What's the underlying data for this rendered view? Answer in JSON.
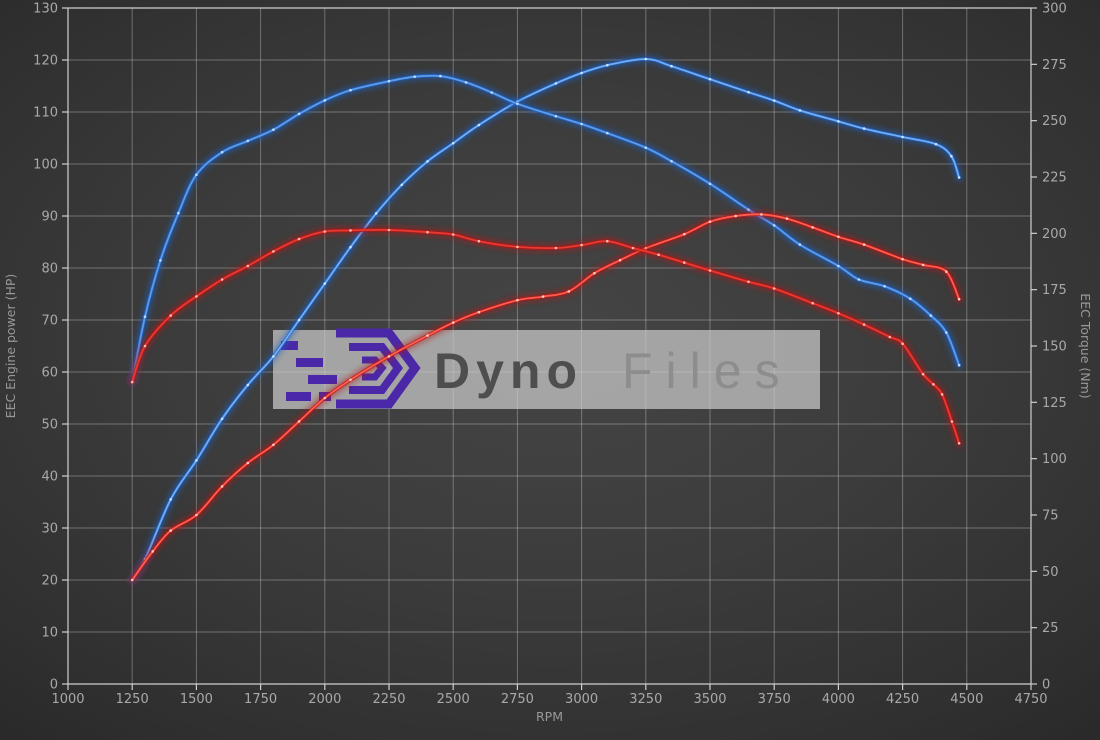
{
  "watermark": {
    "brand_primary": "Dyno",
    "brand_secondary": "Files",
    "logo_color": "#4a28a7",
    "box_color": "#cfcfcf",
    "primary_text_color": "#4e4e4e",
    "secondary_text_color": "#8d8d8d"
  },
  "chart_data": {
    "type": "line",
    "xlabel": "RPM",
    "ylabel_left": "EEC Engine power (HP)",
    "ylabel_right": "EEC Torque (Nm)",
    "x_range": [
      1000,
      4750
    ],
    "x_ticks": [
      1000,
      1250,
      1500,
      1750,
      2000,
      2250,
      2500,
      2750,
      3000,
      3250,
      3500,
      3750,
      4000,
      4250,
      4500,
      4750
    ],
    "y_left_range": [
      0,
      130
    ],
    "y_left_ticks": [
      0,
      10,
      20,
      30,
      40,
      50,
      60,
      70,
      80,
      90,
      100,
      110,
      120,
      130
    ],
    "y_right_range": [
      0,
      300
    ],
    "y_right_ticks": [
      0,
      25,
      50,
      75,
      100,
      125,
      150,
      175,
      200,
      225,
      250,
      275,
      300
    ],
    "grid": true,
    "legend": "none",
    "style": {
      "grid_color": "rgba(210,210,210,0.38)",
      "spine_color": "#cfcfcf",
      "tick_label_color": "#a9a9a9",
      "axis_title_color": "#989898",
      "blue": "#3c7fd9",
      "red": "#d42a20"
    },
    "series": [
      {
        "id": "engine-power-blue",
        "axis": "left",
        "peak": "120 HP @ 3250 rpm",
        "color": {
          "glow": "#1e62c8",
          "core": "#74aef2",
          "dot": "#d6e9ff"
        },
        "points": [
          [
            1250,
            20
          ],
          [
            1300,
            24
          ],
          [
            1400,
            35.5
          ],
          [
            1500,
            43
          ],
          [
            1600,
            51
          ],
          [
            1700,
            57.5
          ],
          [
            1800,
            63
          ],
          [
            1900,
            70
          ],
          [
            2000,
            77
          ],
          [
            2100,
            84
          ],
          [
            2200,
            90.5
          ],
          [
            2300,
            96
          ],
          [
            2400,
            100.5
          ],
          [
            2500,
            104
          ],
          [
            2600,
            107.5
          ],
          [
            2750,
            112
          ],
          [
            2900,
            115.5
          ],
          [
            3000,
            117.5
          ],
          [
            3100,
            119
          ],
          [
            3250,
            120.2
          ],
          [
            3350,
            118.8
          ],
          [
            3500,
            116.3
          ],
          [
            3650,
            113.8
          ],
          [
            3750,
            112.2
          ],
          [
            3850,
            110.3
          ],
          [
            4000,
            108.2
          ],
          [
            4100,
            106.8
          ],
          [
            4250,
            105.2
          ],
          [
            4380,
            103.8
          ],
          [
            4440,
            101.5
          ],
          [
            4470,
            97.4
          ]
        ]
      },
      {
        "id": "engine-torque-blue",
        "axis": "right",
        "peak": "270 Nm @ 2450 rpm",
        "color": {
          "glow": "#1e62c8",
          "core": "#5e9ce8",
          "dot": "#c9e2ff"
        },
        "points": [
          [
            1250,
            134
          ],
          [
            1300,
            163
          ],
          [
            1360,
            188
          ],
          [
            1430,
            209
          ],
          [
            1500,
            226
          ],
          [
            1600,
            236
          ],
          [
            1700,
            241
          ],
          [
            1800,
            246
          ],
          [
            1900,
            253
          ],
          [
            2000,
            259
          ],
          [
            2100,
            263.5
          ],
          [
            2250,
            267.5
          ],
          [
            2350,
            269.5
          ],
          [
            2450,
            269.8
          ],
          [
            2550,
            267
          ],
          [
            2650,
            262.5
          ],
          [
            2750,
            257.5
          ],
          [
            2900,
            252
          ],
          [
            3000,
            248.5
          ],
          [
            3100,
            244.5
          ],
          [
            3250,
            238
          ],
          [
            3350,
            232
          ],
          [
            3500,
            222
          ],
          [
            3650,
            210.5
          ],
          [
            3750,
            203.5
          ],
          [
            3850,
            195
          ],
          [
            4000,
            185.5
          ],
          [
            4080,
            179.5
          ],
          [
            4180,
            176.5
          ],
          [
            4280,
            171
          ],
          [
            4360,
            163.5
          ],
          [
            4420,
            156
          ],
          [
            4470,
            141.5
          ]
        ]
      },
      {
        "id": "engine-power-red",
        "axis": "left",
        "peak": "90 HP @ 3700 rpm",
        "color": {
          "glow": "#b81414",
          "core": "#ff5d50",
          "dot": "#ffd8cf"
        },
        "points": [
          [
            1250,
            20
          ],
          [
            1330,
            25.5
          ],
          [
            1400,
            29.5
          ],
          [
            1500,
            32.5
          ],
          [
            1600,
            38
          ],
          [
            1700,
            42.5
          ],
          [
            1800,
            46
          ],
          [
            1900,
            50.5
          ],
          [
            2000,
            55
          ],
          [
            2100,
            58.5
          ],
          [
            2250,
            63
          ],
          [
            2400,
            67
          ],
          [
            2500,
            69.5
          ],
          [
            2600,
            71.5
          ],
          [
            2750,
            73.8
          ],
          [
            2850,
            74.5
          ],
          [
            2950,
            75.5
          ],
          [
            3050,
            79
          ],
          [
            3150,
            81.5
          ],
          [
            3250,
            83.8
          ],
          [
            3400,
            86.5
          ],
          [
            3500,
            88.9
          ],
          [
            3600,
            90
          ],
          [
            3700,
            90.3
          ],
          [
            3800,
            89.5
          ],
          [
            3900,
            87.8
          ],
          [
            4000,
            86
          ],
          [
            4100,
            84.5
          ],
          [
            4250,
            81.7
          ],
          [
            4330,
            80.6
          ],
          [
            4420,
            79.3
          ],
          [
            4470,
            74
          ]
        ]
      },
      {
        "id": "engine-torque-red",
        "axis": "right",
        "peak": "201 Nm @ 2250 rpm",
        "color": {
          "glow": "#b81414",
          "core": "#e63b32",
          "dot": "#ffc9c2"
        },
        "points": [
          [
            1250,
            134
          ],
          [
            1300,
            150
          ],
          [
            1400,
            163.5
          ],
          [
            1500,
            172
          ],
          [
            1600,
            179.5
          ],
          [
            1700,
            185.5
          ],
          [
            1800,
            192
          ],
          [
            1900,
            197.5
          ],
          [
            2000,
            200.8
          ],
          [
            2100,
            201.3
          ],
          [
            2250,
            201.5
          ],
          [
            2400,
            200.5
          ],
          [
            2500,
            199.5
          ],
          [
            2600,
            196.5
          ],
          [
            2750,
            194
          ],
          [
            2900,
            193.5
          ],
          [
            3000,
            194.8
          ],
          [
            3100,
            196.5
          ],
          [
            3200,
            193.5
          ],
          [
            3300,
            190.5
          ],
          [
            3400,
            187
          ],
          [
            3500,
            183.5
          ],
          [
            3650,
            178.5
          ],
          [
            3750,
            175.5
          ],
          [
            3900,
            169
          ],
          [
            4000,
            164.5
          ],
          [
            4100,
            159.5
          ],
          [
            4200,
            154
          ],
          [
            4250,
            151
          ],
          [
            4330,
            137.5
          ],
          [
            4370,
            133
          ],
          [
            4404,
            128.5
          ],
          [
            4442,
            116.5
          ],
          [
            4470,
            106.8
          ]
        ]
      }
    ]
  }
}
